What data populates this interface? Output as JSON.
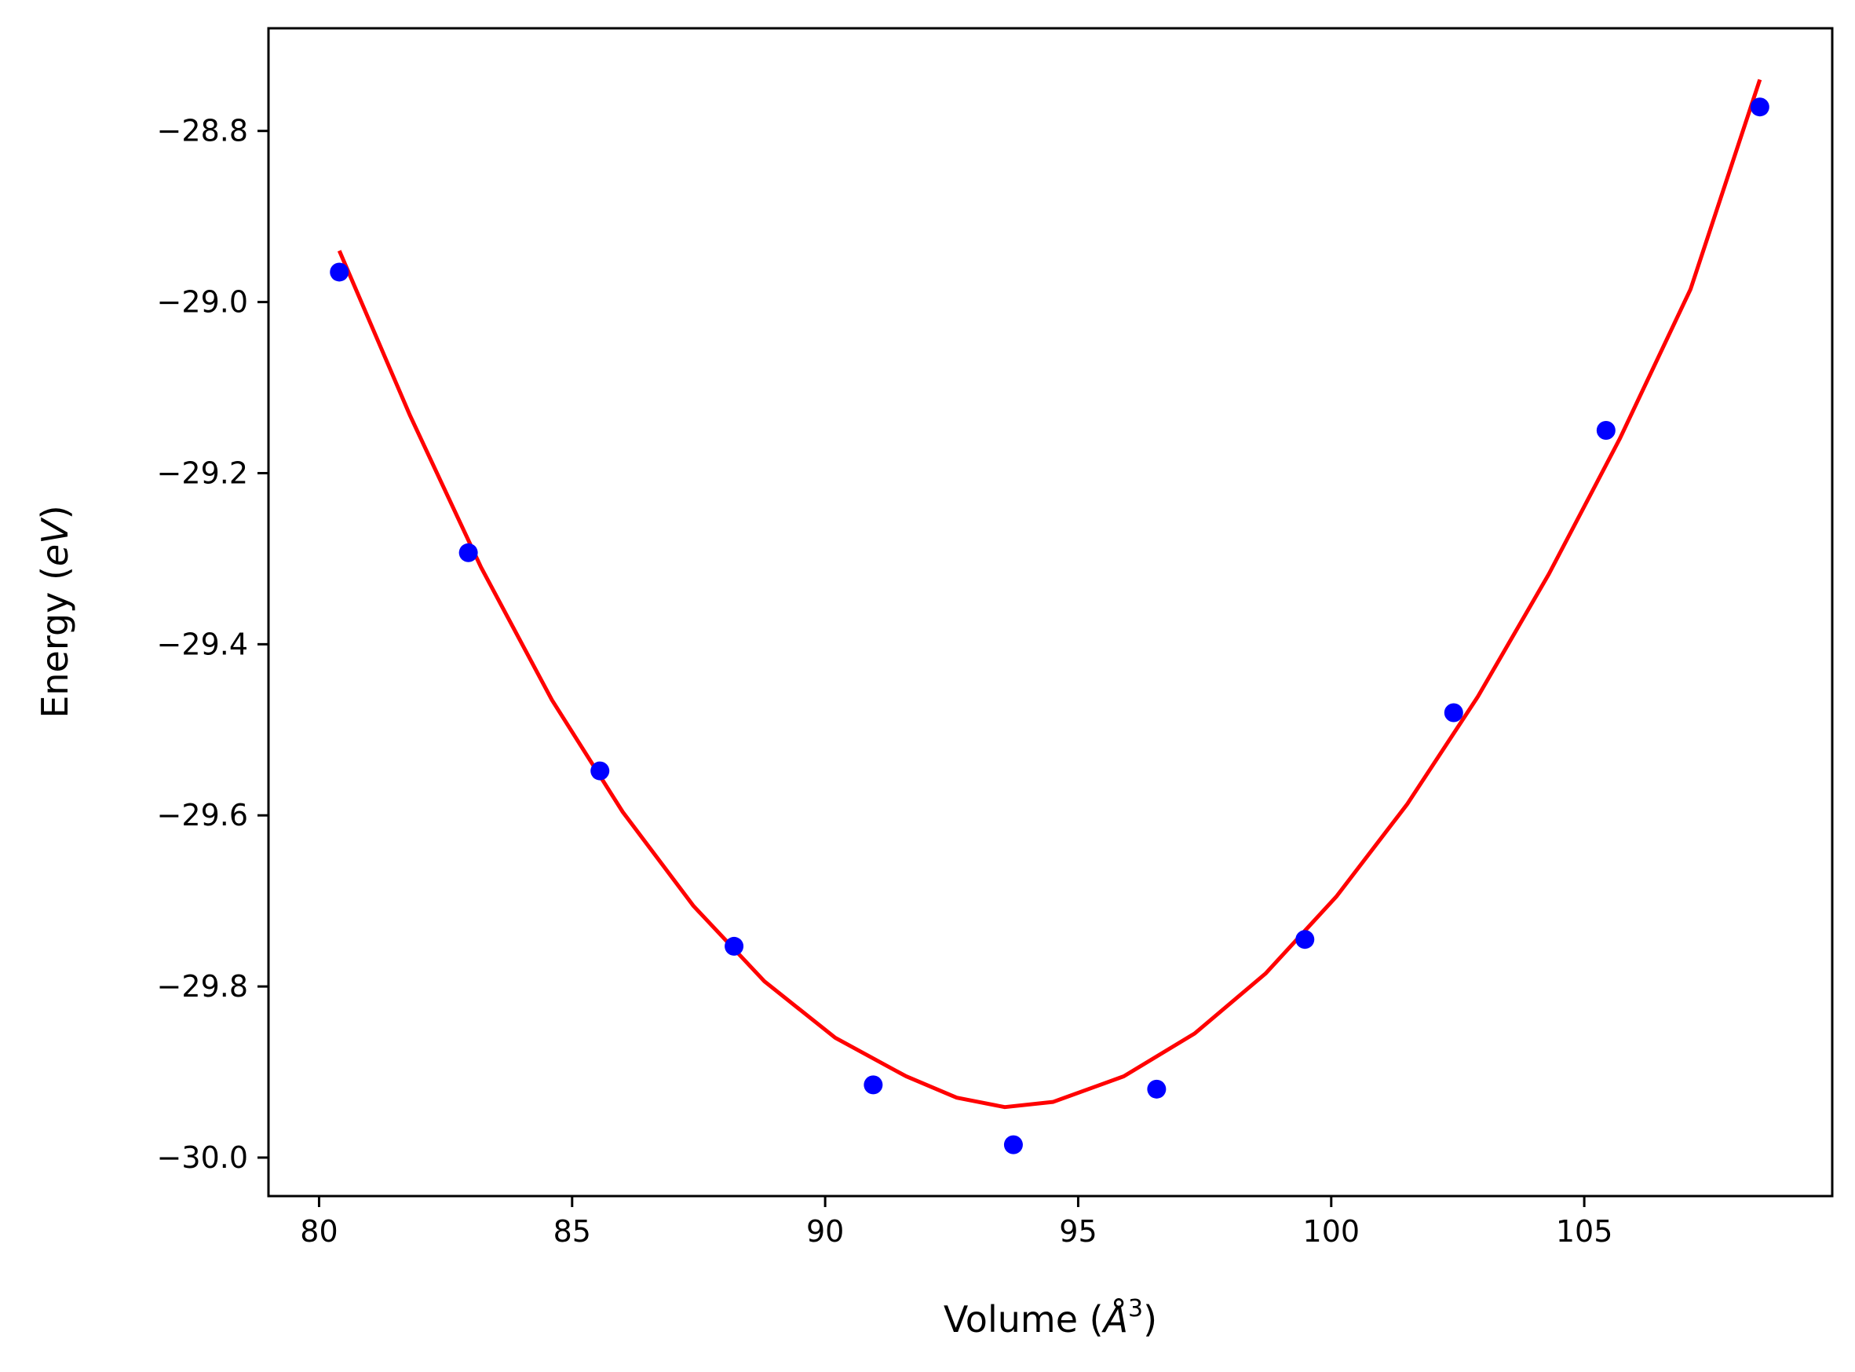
{
  "chart_data": {
    "type": "scatter",
    "title": "",
    "xlabel": {
      "prefix": "Volume (",
      "unit_symbol": "Å",
      "unit_power": "3",
      "suffix": ")"
    },
    "ylabel": {
      "prefix": "Energy (",
      "unit": "eV",
      "suffix": ")"
    },
    "xlim": [
      79.0,
      109.9
    ],
    "ylim": [
      -30.045,
      -28.68
    ],
    "xticks": [
      80,
      85,
      90,
      95,
      100,
      105
    ],
    "xtick_labels": [
      "80",
      "85",
      "90",
      "95",
      "100",
      "105"
    ],
    "yticks": [
      -28.8,
      -29.0,
      -29.2,
      -29.4,
      -29.6,
      -29.8,
      -30.0
    ],
    "ytick_labels": [
      "−28.8",
      "−29.0",
      "−29.2",
      "−29.4",
      "−29.6",
      "−29.8",
      "−30.0"
    ],
    "grid": false,
    "legend": "none",
    "series": [
      {
        "kind": "points",
        "color": "#0000ff",
        "x": [
          80.4,
          82.95,
          85.55,
          88.2,
          90.95,
          93.72,
          96.55,
          99.48,
          102.42,
          105.43,
          108.47
        ],
        "y": [
          -28.965,
          -29.293,
          -29.548,
          -29.753,
          -29.915,
          -29.985,
          -29.92,
          -29.745,
          -29.48,
          -29.15,
          -28.772
        ]
      },
      {
        "kind": "fit-curve",
        "color": "#ff0000",
        "x": [
          80.4,
          81.8,
          83.2,
          84.6,
          86.0,
          87.4,
          88.8,
          90.2,
          91.6,
          92.6,
          93.55,
          94.5,
          95.9,
          97.3,
          98.7,
          100.1,
          101.5,
          102.9,
          104.3,
          105.7,
          107.1,
          108.47
        ],
        "y": [
          -28.94,
          -29.133,
          -29.31,
          -29.465,
          -29.596,
          -29.706,
          -29.794,
          -29.86,
          -29.905,
          -29.93,
          -29.941,
          -29.935,
          -29.905,
          -29.855,
          -29.785,
          -29.695,
          -29.587,
          -29.461,
          -29.318,
          -29.16,
          -28.985,
          -28.74
        ]
      }
    ]
  }
}
